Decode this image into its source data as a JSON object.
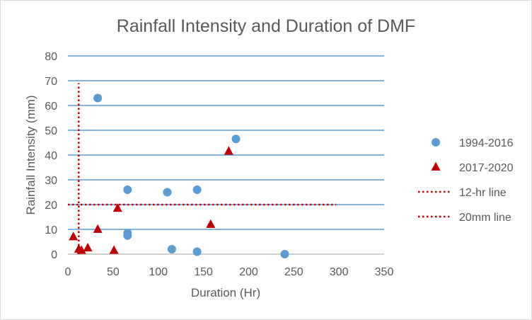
{
  "chart_data": {
    "type": "scatter",
    "title": "Rainfall Intensity and Duration of DMF",
    "xlabel": "Duration (Hr)",
    "ylabel": "Rainfall Intensity (mm)",
    "xlim": [
      0,
      350
    ],
    "ylim": [
      0,
      80
    ],
    "xticks": [
      "0",
      "50",
      "100",
      "150",
      "200",
      "250",
      "300",
      "350"
    ],
    "yticks": [
      "0",
      "10",
      "20",
      "30",
      "40",
      "50",
      "60",
      "70",
      "80"
    ],
    "grid": "horizontal",
    "legend_position": "right",
    "series": [
      {
        "name": "1994-2016",
        "marker": "circle",
        "color": "#5b9bd5",
        "points": [
          {
            "x": 33,
            "y": 63
          },
          {
            "x": 66,
            "y": 26
          },
          {
            "x": 66,
            "y": 8.5
          },
          {
            "x": 66,
            "y": 7.5
          },
          {
            "x": 110,
            "y": 25
          },
          {
            "x": 115,
            "y": 2
          },
          {
            "x": 143,
            "y": 26
          },
          {
            "x": 143,
            "y": 1
          },
          {
            "x": 186,
            "y": 46.5
          },
          {
            "x": 240,
            "y": 0
          }
        ]
      },
      {
        "name": "2017-2020",
        "marker": "triangle",
        "color": "#c00000",
        "points": [
          {
            "x": 6,
            "y": 7
          },
          {
            "x": 12,
            "y": 2
          },
          {
            "x": 15,
            "y": 1.5
          },
          {
            "x": 22,
            "y": 2.5
          },
          {
            "x": 33,
            "y": 10
          },
          {
            "x": 51,
            "y": 1.5
          },
          {
            "x": 55,
            "y": 18.5
          },
          {
            "x": 158,
            "y": 12
          },
          {
            "x": 178,
            "y": 41.5
          }
        ]
      },
      {
        "name": "12-hr line",
        "style": "dotted",
        "color": "#c00000",
        "points": [
          {
            "x": 12,
            "y": 0
          },
          {
            "x": 12,
            "y": 69
          }
        ]
      },
      {
        "name": "20mm line",
        "style": "dotted",
        "color": "#c00000",
        "points": [
          {
            "x": 0,
            "y": 20
          },
          {
            "x": 297,
            "y": 20
          }
        ]
      }
    ]
  },
  "colors": {
    "gridline": "#5b9bd5",
    "axis_line": "#bfbfbf",
    "text": "#595959"
  }
}
